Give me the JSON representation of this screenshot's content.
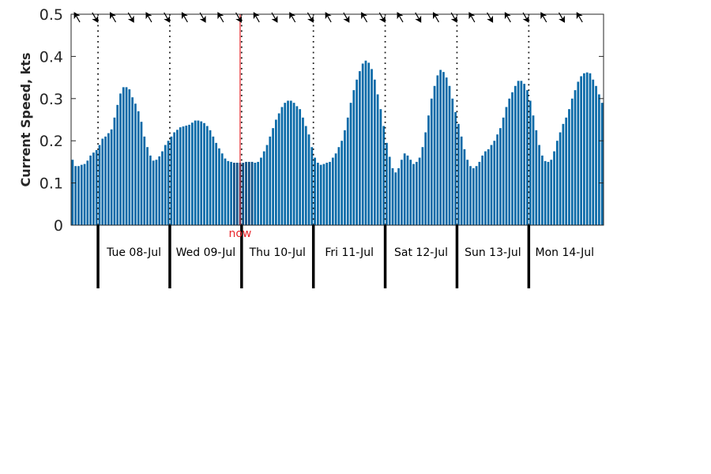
{
  "chart_data": {
    "type": "bar",
    "ylabel": "Current Speed, kts",
    "ylim": [
      0,
      0.5
    ],
    "yticks": [
      0,
      0.1,
      0.2,
      0.3,
      0.4,
      0.5
    ],
    "ytick_labels": [
      "0",
      "0.1",
      "0.2",
      "0.3",
      "0.4",
      "0.5"
    ],
    "grid": false,
    "interval_hours": 1,
    "start": "07-Jul 20:30",
    "bar_color": "#0a6aa8",
    "highlight_color": "#0d4f86",
    "values": [
      0.155,
      0.14,
      0.14,
      0.143,
      0.145,
      0.153,
      0.165,
      0.172,
      0.178,
      0.19,
      0.205,
      0.21,
      0.218,
      0.227,
      0.255,
      0.285,
      0.312,
      0.327,
      0.327,
      0.322,
      0.303,
      0.288,
      0.27,
      0.245,
      0.21,
      0.185,
      0.165,
      0.153,
      0.155,
      0.163,
      0.175,
      0.19,
      0.2,
      0.21,
      0.22,
      0.226,
      0.232,
      0.234,
      0.236,
      0.238,
      0.243,
      0.248,
      0.248,
      0.246,
      0.242,
      0.235,
      0.225,
      0.21,
      0.195,
      0.182,
      0.17,
      0.158,
      0.152,
      0.15,
      0.148,
      0.148,
      0.148,
      0.148,
      0.15,
      0.15,
      0.15,
      0.148,
      0.15,
      0.16,
      0.175,
      0.19,
      0.21,
      0.23,
      0.25,
      0.265,
      0.28,
      0.29,
      0.295,
      0.295,
      0.29,
      0.282,
      0.275,
      0.255,
      0.235,
      0.215,
      0.185,
      0.16,
      0.148,
      0.143,
      0.145,
      0.148,
      0.15,
      0.16,
      0.17,
      0.185,
      0.2,
      0.225,
      0.255,
      0.29,
      0.32,
      0.345,
      0.365,
      0.383,
      0.39,
      0.385,
      0.37,
      0.345,
      0.31,
      0.275,
      0.235,
      0.195,
      0.162,
      0.135,
      0.125,
      0.135,
      0.155,
      0.17,
      0.165,
      0.155,
      0.145,
      0.15,
      0.16,
      0.185,
      0.22,
      0.26,
      0.3,
      0.33,
      0.355,
      0.368,
      0.363,
      0.35,
      0.33,
      0.3,
      0.268,
      0.24,
      0.21,
      0.18,
      0.155,
      0.14,
      0.135,
      0.14,
      0.15,
      0.165,
      0.175,
      0.18,
      0.19,
      0.2,
      0.215,
      0.23,
      0.255,
      0.28,
      0.3,
      0.315,
      0.33,
      0.342,
      0.342,
      0.335,
      0.32,
      0.295,
      0.26,
      0.225,
      0.19,
      0.165,
      0.152,
      0.15,
      0.155,
      0.175,
      0.2,
      0.22,
      0.24,
      0.255,
      0.275,
      0.3,
      0.32,
      0.34,
      0.353,
      0.36,
      0.362,
      0.36,
      0.345,
      0.33,
      0.31,
      0.29
    ],
    "highlight_range": [
      54,
      60
    ],
    "now": {
      "label": "now",
      "index": 56.5,
      "color": "#e8262b"
    },
    "day_boundaries": [
      {
        "index": 9
      },
      {
        "index": 33
      },
      {
        "index": 57
      },
      {
        "index": 81
      },
      {
        "index": 105
      },
      {
        "index": 129
      },
      {
        "index": 153
      }
    ],
    "day_labels": [
      "Tue 08-Jul",
      "Wed 09-Jul",
      "Thu 10-Jul",
      "Fri 11-Jul",
      "Sat 12-Jul",
      "Sun 13-Jul",
      "Mon 14-Jul"
    ],
    "direction_arrows": {
      "color": "#000000",
      "count": 29,
      "spacing_hours": 6,
      "first_index": 2,
      "angles_deg": [
        -120,
        60,
        -120,
        60,
        -120,
        60,
        -120,
        60,
        -120,
        60,
        -120,
        60,
        -120,
        60,
        -120,
        60,
        -120,
        60,
        -120,
        60,
        -120,
        60,
        -120,
        60,
        -120,
        60,
        -120,
        60,
        -120
      ]
    }
  }
}
